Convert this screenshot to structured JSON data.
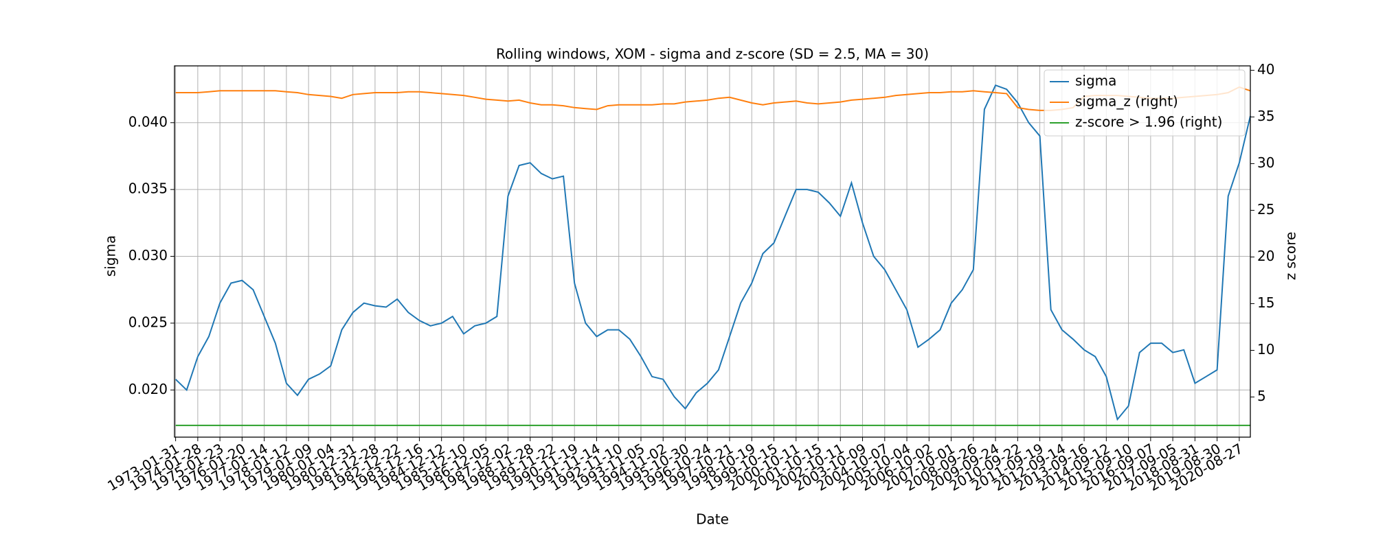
{
  "chart_data": {
    "type": "line",
    "title": "Rolling windows, XOM - sigma and z-score (SD = 2.5, MA = 30)",
    "xlabel": "Date",
    "ylabel": "sigma",
    "y2label": "z score",
    "categories": [
      "1973-01-31",
      null,
      "1974-01-28",
      null,
      "1975-01-23",
      null,
      "1976-01-20",
      null,
      "1977-01-14",
      null,
      "1978-01-12",
      null,
      "1979-01-09",
      null,
      "1980-01-04",
      null,
      "1980-12-31",
      null,
      "1981-12-28",
      null,
      "1982-12-22",
      null,
      "1983-12-16",
      null,
      "1984-12-12",
      null,
      "1985-12-10",
      null,
      "1986-12-05",
      null,
      "1987-12-02",
      null,
      "1988-11-28",
      null,
      "1989-11-22",
      null,
      "1990-11-19",
      null,
      "1991-11-14",
      null,
      "1992-11-10",
      null,
      "1993-11-05",
      null,
      "1994-11-02",
      null,
      "1995-10-30",
      null,
      "1996-10-24",
      null,
      "1997-10-21",
      null,
      "1998-10-19",
      null,
      "1999-10-15",
      null,
      "2000-10-11",
      null,
      "2001-10-15",
      null,
      "2002-10-11",
      null,
      "2003-10-09",
      null,
      "2004-10-07",
      null,
      "2005-10-04",
      null,
      "2006-10-02",
      null,
      "2007-10-01",
      null,
      "2008-09-26",
      null,
      "2009-09-24",
      null,
      "2010-09-22",
      null,
      "2011-09-19",
      null,
      "2012-09-14",
      null,
      "2013-09-16",
      null,
      "2014-09-12",
      null,
      "2015-09-10",
      null,
      "2016-09-07",
      null,
      "2017-09-05",
      null,
      "2018-08-31",
      null,
      "2019-08-30",
      null,
      "2020-08-27",
      null
    ],
    "series": [
      {
        "name": "sigma",
        "color": "#1f77b4",
        "values": [
          0.0208,
          0.02,
          0.0225,
          0.024,
          0.0265,
          0.028,
          0.0282,
          0.0275,
          0.0255,
          0.0235,
          0.0205,
          0.0196,
          0.0208,
          0.0212,
          0.0218,
          0.0245,
          0.0258,
          0.0265,
          0.0263,
          0.0262,
          0.0268,
          0.0258,
          0.0252,
          0.0248,
          0.025,
          0.0255,
          0.0242,
          0.0248,
          0.025,
          0.0255,
          0.0345,
          0.0368,
          0.037,
          0.0362,
          0.0358,
          0.036,
          0.028,
          0.025,
          0.024,
          0.0245,
          0.0245,
          0.0238,
          0.0225,
          0.021,
          0.0208,
          0.0195,
          0.0186,
          0.0198,
          0.0205,
          0.0215,
          0.024,
          0.0265,
          0.028,
          0.0302,
          0.031,
          0.033,
          0.035,
          0.035,
          0.0348,
          0.034,
          0.033,
          0.0355,
          0.0325,
          0.03,
          0.029,
          0.0275,
          0.026,
          0.0232,
          0.0238,
          0.0245,
          0.0265,
          0.0275,
          0.029,
          0.041,
          0.0428,
          0.0425,
          0.0415,
          0.04,
          0.039,
          0.026,
          0.0245,
          0.0238,
          0.023,
          0.0225,
          0.021,
          0.0178,
          0.0188,
          0.0228,
          0.0235,
          0.0235,
          0.0228,
          0.023,
          0.0205,
          0.021,
          0.0215,
          0.0345,
          0.037,
          0.0405
        ]
      },
      {
        "name": "sigma_z (right)",
        "color": "#ff7f0e",
        "axis": "y2",
        "values": [
          37.6,
          37.6,
          37.6,
          37.7,
          37.8,
          37.8,
          37.8,
          37.8,
          37.8,
          37.8,
          37.7,
          37.6,
          37.4,
          37.3,
          37.2,
          37.0,
          37.4,
          37.5,
          37.6,
          37.6,
          37.6,
          37.7,
          37.7,
          37.6,
          37.5,
          37.4,
          37.3,
          37.1,
          36.9,
          36.8,
          36.7,
          36.8,
          36.5,
          36.3,
          36.3,
          36.2,
          36.0,
          35.9,
          35.8,
          36.2,
          36.3,
          36.3,
          36.3,
          36.3,
          36.4,
          36.4,
          36.6,
          36.7,
          36.8,
          37.0,
          37.1,
          36.8,
          36.5,
          36.3,
          36.5,
          36.6,
          36.7,
          36.5,
          36.4,
          36.5,
          36.6,
          36.8,
          36.9,
          37.0,
          37.1,
          37.3,
          37.4,
          37.5,
          37.6,
          37.6,
          37.7,
          37.7,
          37.8,
          37.7,
          37.6,
          37.5,
          36.0,
          35.8,
          35.7,
          35.7,
          35.8,
          36.0,
          37.2,
          37.3,
          37.3,
          37.3,
          37.2,
          37.1,
          37.0,
          37.0,
          37.0,
          37.1,
          37.2,
          37.3,
          37.4,
          37.6,
          38.2,
          37.8
        ]
      },
      {
        "name": "z-score > 1.96 (right)",
        "color": "#2ca02c",
        "axis": "y2",
        "values": [
          1.96,
          1.96,
          1.96,
          1.96,
          1.96,
          1.96,
          1.96,
          1.96,
          1.96,
          1.96,
          1.96,
          1.96,
          1.96,
          1.96,
          1.96,
          1.96,
          1.96,
          1.96,
          1.96,
          1.96,
          1.96,
          1.96,
          1.96,
          1.96,
          1.96,
          1.96,
          1.96,
          1.96,
          1.96,
          1.96,
          1.96,
          1.96,
          1.96,
          1.96,
          1.96,
          1.96,
          1.96,
          1.96,
          1.96,
          1.96,
          1.96,
          1.96,
          1.96,
          1.96,
          1.96,
          1.96,
          1.96,
          1.96,
          1.96,
          1.96,
          1.96,
          1.96,
          1.96,
          1.96,
          1.96,
          1.96,
          1.96,
          1.96,
          1.96,
          1.96,
          1.96,
          1.96,
          1.96,
          1.96,
          1.96,
          1.96,
          1.96,
          1.96,
          1.96,
          1.96,
          1.96,
          1.96,
          1.96,
          1.96,
          1.96,
          1.96,
          1.96,
          1.96,
          1.96,
          1.96,
          1.96,
          1.96,
          1.96,
          1.96,
          1.96,
          1.96,
          1.96,
          1.96,
          1.96,
          1.96,
          1.96,
          1.96,
          1.96,
          1.96,
          1.96,
          1.96,
          1.96,
          1.96
        ]
      }
    ],
    "ylim": [
      0.01647,
      0.04425
    ],
    "yticks": [
      {
        "value": 0.02,
        "label": "0.020"
      },
      {
        "value": 0.025,
        "label": "0.025"
      },
      {
        "value": 0.03,
        "label": "0.030"
      },
      {
        "value": 0.035,
        "label": "0.035"
      },
      {
        "value": 0.04,
        "label": "0.040"
      }
    ],
    "y2lim": [
      0.7,
      40.47
    ],
    "y2ticks": [
      5,
      10,
      15,
      20,
      25,
      30,
      35,
      40
    ],
    "grid": true,
    "legend": "upper right"
  }
}
